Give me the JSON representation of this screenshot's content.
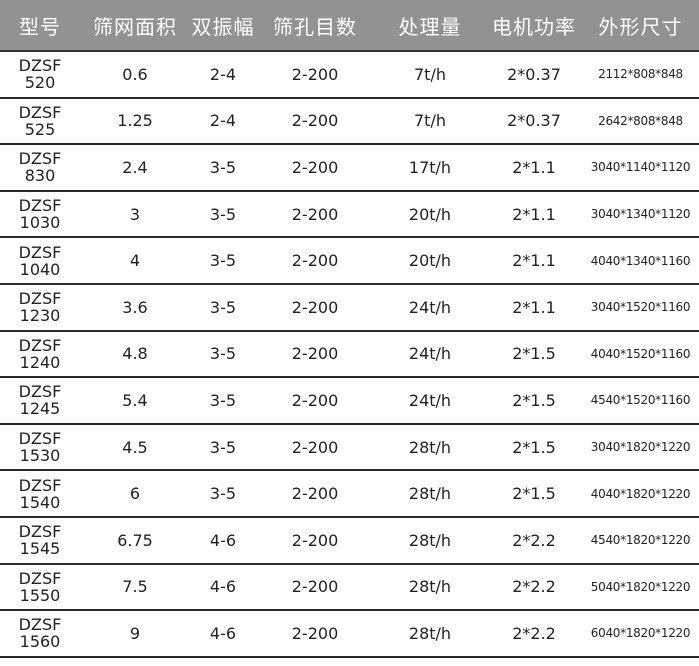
{
  "headers": [
    "型号",
    "筛网面积",
    "双振幅",
    "筛孔目数",
    "处理量",
    "电机功率",
    "外形尺寸"
  ],
  "rows": [
    {
      "model_prefix": "DZSF",
      "model_num": "520",
      "area": "0.6",
      "amplitude": "2-4",
      "mesh": "2-200",
      "capacity": "7t/h",
      "power": "2*0.37",
      "size": "2112*808*848"
    },
    {
      "model_prefix": "DZSF",
      "model_num": "525",
      "area": "1.25",
      "amplitude": "2-4",
      "mesh": "2-200",
      "capacity": "7t/h",
      "power": "2*0.37",
      "size": "2642*808*848"
    },
    {
      "model_prefix": "DZSF",
      "model_num": "830",
      "area": "2.4",
      "amplitude": "3-5",
      "mesh": "2-200",
      "capacity": "17t/h",
      "power": "2*1.1",
      "size": "3040*1140*1120"
    },
    {
      "model_prefix": "DZSF",
      "model_num": "1030",
      "area": "3",
      "amplitude": "3-5",
      "mesh": "2-200",
      "capacity": "20t/h",
      "power": "2*1.1",
      "size": "3040*1340*1120"
    },
    {
      "model_prefix": "DZSF",
      "model_num": "1040",
      "area": "4",
      "amplitude": "3-5",
      "mesh": "2-200",
      "capacity": "20t/h",
      "power": "2*1.1",
      "size": "4040*1340*1160"
    },
    {
      "model_prefix": "DZSF",
      "model_num": "1230",
      "area": "3.6",
      "amplitude": "3-5",
      "mesh": "2-200",
      "capacity": "24t/h",
      "power": "2*1.1",
      "size": "3040*1520*1160"
    },
    {
      "model_prefix": "DZSF",
      "model_num": "1240",
      "area": "4.8",
      "amplitude": "3-5",
      "mesh": "2-200",
      "capacity": "24t/h",
      "power": "2*1.5",
      "size": "4040*1520*1160"
    },
    {
      "model_prefix": "DZSF",
      "model_num": "1245",
      "area": "5.4",
      "amplitude": "3-5",
      "mesh": "2-200",
      "capacity": "24t/h",
      "power": "2*1.5",
      "size": "4540*1520*1160"
    },
    {
      "model_prefix": "DZSF",
      "model_num": "1530",
      "area": "4.5",
      "amplitude": "3-5",
      "mesh": "2-200",
      "capacity": "28t/h",
      "power": "2*1.5",
      "size": "3040*1820*1220"
    },
    {
      "model_prefix": "DZSF",
      "model_num": "1540",
      "area": "6",
      "amplitude": "3-5",
      "mesh": "2-200",
      "capacity": "28t/h",
      "power": "2*1.5",
      "size": "4040*1820*1220"
    },
    {
      "model_prefix": "DZSF",
      "model_num": "1545",
      "area": "6.75",
      "amplitude": "4-6",
      "mesh": "2-200",
      "capacity": "28t/h",
      "power": "2*2.2",
      "size": "4540*1820*1220"
    },
    {
      "model_prefix": "DZSF",
      "model_num": "1550",
      "area": "7.5",
      "amplitude": "4-6",
      "mesh": "2-200",
      "capacity": "28t/h",
      "power": "2*2.2",
      "size": "5040*1820*1220"
    },
    {
      "model_prefix": "DZSF",
      "model_num": "1560",
      "area": "9",
      "amplitude": "4-6",
      "mesh": "2-200",
      "capacity": "28t/h",
      "power": "2*2.2",
      "size": "6040*1820*1220"
    }
  ],
  "colors": {
    "header_bg": "#929292",
    "header_text": "#ffffff",
    "row_divider": "#2a2a2a"
  }
}
